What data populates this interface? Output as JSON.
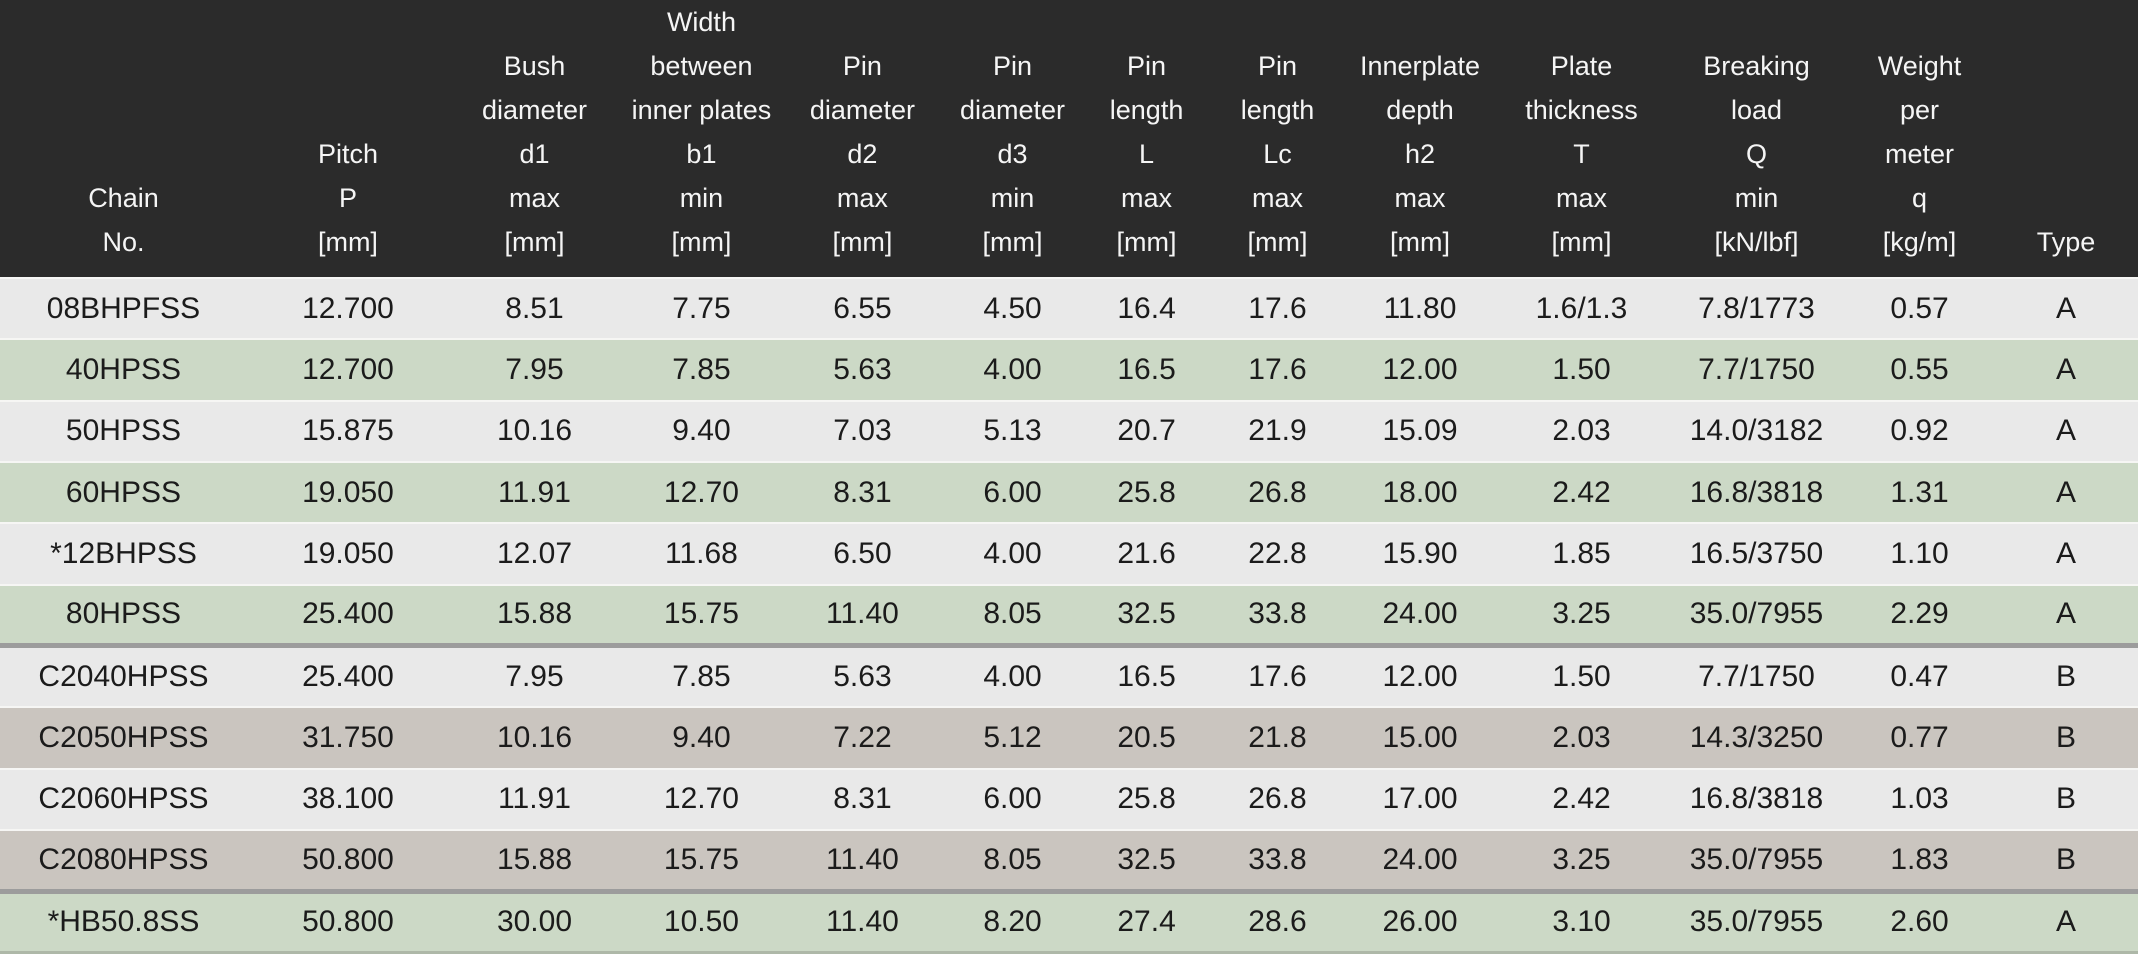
{
  "colors": {
    "header_bg": "#2b2b2b",
    "header_text": "#f5f5f5",
    "row_gray": "#e9e9e9",
    "row_green": "#ccd9c6",
    "row_tan": "#cac5bf",
    "divider": "#9c9c9c",
    "row_separator": "#f6f6f4",
    "text": "#1b1b1b",
    "bottom_edge": "#aeb8a8"
  },
  "table": {
    "columns": [
      {
        "id": "chain-no",
        "width_pct": 11.55,
        "label_lines": [
          "Chain",
          "No."
        ]
      },
      {
        "id": "pitch",
        "width_pct": 9.45,
        "label_lines": [
          "Pitch",
          "P",
          "[mm]"
        ]
      },
      {
        "id": "bush-diameter",
        "width_pct": 8.0,
        "label_lines": [
          "Bush",
          "diameter",
          "d1",
          "max",
          "[mm]"
        ]
      },
      {
        "id": "width-between-inner-plates",
        "width_pct": 7.62,
        "label_lines": [
          "Width",
          "between",
          "inner plates",
          "b1",
          "min",
          "[mm]"
        ]
      },
      {
        "id": "pin-diameter-d2",
        "width_pct": 7.44,
        "label_lines": [
          "Pin",
          "diameter",
          "d2",
          "max",
          "[mm]"
        ]
      },
      {
        "id": "pin-diameter-d3",
        "width_pct": 6.6,
        "label_lines": [
          "Pin",
          "diameter",
          "d3",
          "min",
          "[mm]"
        ]
      },
      {
        "id": "pin-length-l",
        "width_pct": 5.94,
        "label_lines": [
          "Pin",
          "length",
          "L",
          "max",
          "[mm]"
        ]
      },
      {
        "id": "pin-length-lc",
        "width_pct": 6.31,
        "label_lines": [
          "Pin",
          "length",
          "Lc",
          "max",
          "[mm]"
        ]
      },
      {
        "id": "innerplate-depth",
        "width_pct": 7.02,
        "label_lines": [
          "Innerplate",
          "depth",
          "h2",
          "max",
          "[mm]"
        ]
      },
      {
        "id": "plate-thickness",
        "width_pct": 8.09,
        "label_lines": [
          "Plate",
          "thickness",
          "T",
          "max",
          "[mm]"
        ]
      },
      {
        "id": "breaking-load",
        "width_pct": 8.28,
        "label_lines": [
          "Breaking",
          "load",
          "Q",
          "min",
          "[kN/lbf]"
        ]
      },
      {
        "id": "weight-per-meter",
        "width_pct": 6.97,
        "label_lines": [
          "Weight",
          "per",
          "meter",
          "q",
          "[kg/m]"
        ]
      },
      {
        "id": "type",
        "width_pct": 6.73,
        "label_lines": [
          "Type"
        ]
      }
    ],
    "rows": [
      {
        "variant": "gray",
        "divider_above": false,
        "cells": [
          "08BHPFSS",
          "12.700",
          "8.51",
          "7.75",
          "6.55",
          "4.50",
          "16.4",
          "17.6",
          "11.80",
          "1.6/1.3",
          "7.8/1773",
          "0.57",
          "A"
        ]
      },
      {
        "variant": "green",
        "divider_above": false,
        "cells": [
          "40HPSS",
          "12.700",
          "7.95",
          "7.85",
          "5.63",
          "4.00",
          "16.5",
          "17.6",
          "12.00",
          "1.50",
          "7.7/1750",
          "0.55",
          "A"
        ]
      },
      {
        "variant": "gray",
        "divider_above": false,
        "cells": [
          "50HPSS",
          "15.875",
          "10.16",
          "9.40",
          "7.03",
          "5.13",
          "20.7",
          "21.9",
          "15.09",
          "2.03",
          "14.0/3182",
          "0.92",
          "A"
        ]
      },
      {
        "variant": "green",
        "divider_above": false,
        "cells": [
          "60HPSS",
          "19.050",
          "11.91",
          "12.70",
          "8.31",
          "6.00",
          "25.8",
          "26.8",
          "18.00",
          "2.42",
          "16.8/3818",
          "1.31",
          "A"
        ]
      },
      {
        "variant": "gray",
        "divider_above": false,
        "cells": [
          "*12BHPSS",
          "19.050",
          "12.07",
          "11.68",
          "6.50",
          "4.00",
          "21.6",
          "22.8",
          "15.90",
          "1.85",
          "16.5/3750",
          "1.10",
          "A"
        ]
      },
      {
        "variant": "green",
        "divider_above": false,
        "cells": [
          "80HPSS",
          "25.400",
          "15.88",
          "15.75",
          "11.40",
          "8.05",
          "32.5",
          "33.8",
          "24.00",
          "3.25",
          "35.0/7955",
          "2.29",
          "A"
        ]
      },
      {
        "variant": "gray",
        "divider_above": true,
        "cells": [
          "C2040HPSS",
          "25.400",
          "7.95",
          "7.85",
          "5.63",
          "4.00",
          "16.5",
          "17.6",
          "12.00",
          "1.50",
          "7.7/1750",
          "0.47",
          "B"
        ]
      },
      {
        "variant": "tan",
        "divider_above": false,
        "cells": [
          "C2050HPSS",
          "31.750",
          "10.16",
          "9.40",
          "7.22",
          "5.12",
          "20.5",
          "21.8",
          "15.00",
          "2.03",
          "14.3/3250",
          "0.77",
          "B"
        ]
      },
      {
        "variant": "gray",
        "divider_above": false,
        "cells": [
          "C2060HPSS",
          "38.100",
          "11.91",
          "12.70",
          "8.31",
          "6.00",
          "25.8",
          "26.8",
          "17.00",
          "2.42",
          "16.8/3818",
          "1.03",
          "B"
        ]
      },
      {
        "variant": "tan",
        "divider_above": false,
        "cells": [
          "C2080HPSS",
          "50.800",
          "15.88",
          "15.75",
          "11.40",
          "8.05",
          "32.5",
          "33.8",
          "24.00",
          "3.25",
          "35.0/7955",
          "1.83",
          "B"
        ]
      },
      {
        "variant": "green",
        "divider_above": true,
        "cells": [
          "*HB50.8SS",
          "50.800",
          "30.00",
          "10.50",
          "11.40",
          "8.20",
          "27.4",
          "28.6",
          "26.00",
          "3.10",
          "35.0/7955",
          "2.60",
          "A"
        ]
      }
    ]
  }
}
